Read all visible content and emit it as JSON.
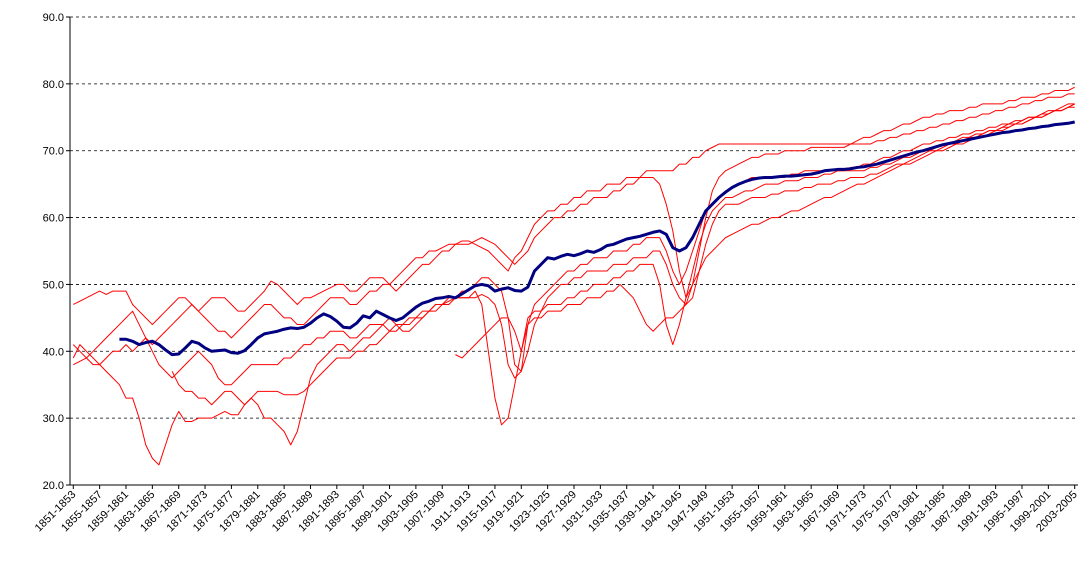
{
  "chart_data": {
    "type": "line",
    "categories": [
      "1851-1853",
      null,
      null,
      null,
      "1855-1857",
      null,
      null,
      null,
      "1859-1861",
      null,
      null,
      null,
      "1863-1865",
      null,
      null,
      null,
      "1867-1869",
      null,
      null,
      null,
      "1871-1873",
      null,
      null,
      null,
      "1875-1877",
      null,
      null,
      null,
      "1879-1881",
      null,
      null,
      null,
      "1883-1885",
      null,
      null,
      null,
      "1887-1889",
      null,
      null,
      null,
      "1891-1893",
      null,
      null,
      null,
      "1895-1897",
      null,
      null,
      null,
      "1899-1901",
      null,
      null,
      null,
      "1903-1905",
      null,
      null,
      null,
      "1907-1909",
      null,
      null,
      null,
      "1911-1913",
      null,
      null,
      null,
      "1915-1917",
      null,
      null,
      null,
      "1919-1921",
      null,
      null,
      null,
      "1923-1925",
      null,
      null,
      null,
      "1927-1929",
      null,
      null,
      null,
      "1931-1933",
      null,
      null,
      null,
      "1935-1937",
      null,
      null,
      null,
      "1939-1941",
      null,
      null,
      null,
      "1943-1945",
      null,
      null,
      null,
      "1947-1949",
      null,
      null,
      null,
      "1951-1953",
      null,
      null,
      null,
      "1955-1957",
      null,
      null,
      null,
      "1959-1961",
      null,
      null,
      null,
      "1963-1965",
      null,
      null,
      null,
      "1967-1969",
      null,
      null,
      null,
      "1971-1973",
      null,
      null,
      null,
      "1975-1977",
      null,
      null,
      null,
      "1979-1981",
      null,
      null,
      null,
      "1983-1985",
      null,
      null,
      null,
      "1987-1989",
      null,
      null,
      null,
      "1991-1993",
      null,
      null,
      null,
      "1995-1997",
      null,
      null,
      null,
      "1999-2001",
      null,
      null,
      null,
      "2003-2005"
    ],
    "series": [
      {
        "color": "#ff0000",
        "values": [
          47,
          47.5,
          48,
          48.5,
          49,
          48.5,
          49,
          49,
          49,
          47,
          46,
          45,
          44,
          45,
          46,
          47,
          48,
          48,
          47,
          46,
          47,
          48,
          48,
          48,
          47,
          46,
          46,
          47,
          48,
          49,
          50.5,
          50,
          49,
          48,
          47,
          48,
          48,
          48.5,
          49,
          49.5,
          50,
          50,
          49,
          49,
          50,
          51,
          51,
          51,
          50,
          51,
          52,
          53,
          54,
          54,
          55,
          55,
          55.5,
          56,
          56,
          56.5,
          56.5,
          56,
          55.5,
          55,
          54,
          53,
          52,
          54,
          55,
          57,
          59,
          60,
          61,
          61,
          62,
          62,
          63,
          63,
          64,
          64,
          64,
          65,
          65,
          65,
          66,
          66,
          66,
          67,
          67,
          67,
          67,
          67,
          68,
          68,
          69,
          69,
          70,
          70.5,
          71,
          71,
          71,
          71,
          71,
          71,
          71,
          71,
          71,
          71,
          71,
          71,
          71,
          71,
          71,
          71,
          71,
          71,
          71,
          71,
          71,
          71.5,
          72,
          72,
          72.5,
          73,
          73,
          73.5,
          74,
          74,
          74.5,
          75,
          75,
          75.5,
          75.5,
          76,
          76,
          76,
          76.5,
          76.5,
          77,
          77,
          77,
          77,
          77.5,
          77.5,
          78,
          78,
          78,
          78.5,
          78.5,
          79,
          79,
          79,
          79.5
        ]
      },
      {
        "color": "#ff0000",
        "values": [
          39,
          41,
          40,
          39,
          38,
          37,
          36,
          35,
          33,
          33,
          30,
          26,
          24,
          23,
          26,
          29,
          31,
          29.5,
          29.5,
          30,
          30,
          30,
          30.5,
          31,
          30.5,
          30.5,
          32,
          33,
          34,
          34,
          34,
          34,
          33.5,
          33.5,
          33.5,
          34,
          35,
          36,
          37,
          38,
          39,
          39,
          39,
          40,
          40,
          41,
          41,
          42,
          43,
          44,
          44,
          45,
          45,
          46,
          46,
          47,
          47,
          47.5,
          48,
          48,
          48,
          48,
          48.5,
          48,
          47,
          44,
          38,
          36,
          37,
          44,
          47,
          48,
          49,
          50,
          51,
          52,
          52,
          53,
          53,
          54,
          54,
          54,
          55,
          55,
          55,
          56,
          56,
          57,
          57,
          57,
          55,
          52,
          50,
          52,
          55,
          58,
          61,
          62,
          63,
          64,
          64.5,
          65,
          65.5,
          66,
          66,
          66,
          66,
          66,
          66,
          66.5,
          66.5,
          67,
          67,
          67,
          67,
          67,
          67,
          67,
          67.5,
          67.5,
          68,
          68,
          68.5,
          69,
          69,
          69.5,
          70,
          70,
          70.5,
          71,
          71,
          71.5,
          71.5,
          72,
          72,
          72.5,
          72.5,
          73,
          73,
          73.5,
          73.5,
          74,
          74,
          74.5,
          74.5,
          75,
          75,
          75.5,
          75.5,
          76,
          76,
          76.5,
          76.5
        ]
      },
      {
        "color": "#ff0000",
        "values": [
          41,
          40,
          39,
          38,
          38,
          39,
          40,
          40,
          41,
          40,
          41,
          42,
          40,
          38,
          37,
          36,
          37,
          38,
          39,
          40,
          39,
          38,
          36,
          35,
          35,
          36,
          37,
          38,
          38,
          38,
          38,
          38,
          39,
          39,
          40,
          41,
          41,
          42,
          42,
          43,
          43,
          43,
          42,
          42,
          43,
          44,
          44,
          44,
          43,
          43,
          44,
          44,
          45,
          45,
          46,
          46,
          47,
          47,
          48,
          48,
          48,
          49,
          47,
          40,
          33,
          29,
          30,
          35,
          40,
          45,
          46,
          46,
          47,
          47,
          47,
          48,
          48,
          49,
          49,
          50,
          50,
          50,
          51,
          51,
          52,
          52,
          53,
          53,
          53,
          50,
          44,
          41,
          44,
          48,
          52,
          56,
          59,
          61,
          62,
          63,
          63,
          63.5,
          64,
          64,
          64.5,
          65,
          65,
          65,
          65.5,
          65.5,
          65.5,
          66,
          66,
          66,
          66.5,
          66.5,
          67,
          67,
          67,
          67,
          67,
          67.5,
          67.5,
          68,
          68,
          68.5,
          69,
          69,
          69.5,
          70,
          70,
          70.5,
          71,
          71,
          71.5,
          72,
          72,
          72.5,
          72.5,
          73,
          73,
          73.5,
          73.5,
          74,
          74,
          74.5,
          75,
          75,
          75.5,
          76,
          76,
          76.5,
          77
        ]
      },
      {
        "color": "#ff0000",
        "values": [
          null,
          null,
          null,
          null,
          null,
          null,
          null,
          null,
          null,
          null,
          null,
          null,
          null,
          null,
          null,
          37,
          35,
          34,
          34,
          33,
          33,
          32,
          33,
          34,
          34,
          33,
          32,
          33,
          32,
          30,
          30,
          29,
          28,
          26,
          28,
          32,
          36,
          38,
          39,
          40,
          41,
          41,
          40,
          41,
          42,
          42,
          43,
          44,
          45,
          44,
          43,
          43,
          44,
          45,
          46,
          47,
          47,
          48,
          48,
          49,
          49,
          50,
          51,
          51,
          50,
          49,
          45,
          38,
          37,
          40,
          44,
          46,
          48,
          49,
          50,
          50,
          51,
          51,
          52,
          52,
          52,
          52,
          53,
          53,
          53,
          54,
          54,
          54,
          55,
          55,
          53,
          50,
          48,
          47,
          48,
          52,
          56,
          59,
          61,
          62,
          62,
          62,
          62.5,
          63,
          63,
          63,
          63.5,
          63.5,
          64,
          64,
          64,
          64.5,
          64.5,
          65,
          65,
          65,
          65.5,
          65.5,
          66,
          66,
          66,
          66.5,
          66.5,
          67,
          67.5,
          68,
          68,
          68.5,
          69,
          69.5,
          70,
          70,
          70.5,
          71,
          71,
          71.5,
          72,
          72,
          72.5,
          73,
          73,
          73.5,
          74,
          74,
          74.5,
          75,
          75,
          75.5,
          76,
          76,
          76.5,
          77,
          77
        ]
      },
      {
        "color": "#ff0000",
        "values": [
          38,
          38.5,
          39,
          40,
          41,
          42,
          43,
          44,
          45,
          46,
          44,
          42,
          41,
          42,
          43,
          44,
          45,
          46,
          47,
          46,
          45,
          44,
          43,
          43,
          42,
          43,
          44,
          45,
          46,
          47,
          47,
          46,
          45,
          45,
          44,
          44,
          45,
          46,
          47,
          48,
          48,
          48,
          47,
          47,
          48,
          49,
          49,
          50,
          50,
          49,
          50,
          51,
          52,
          53,
          53,
          54,
          55,
          55,
          56,
          56,
          56,
          56.5,
          57,
          56.5,
          56,
          55,
          54,
          53,
          54,
          55,
          57,
          58,
          59,
          60,
          60,
          61,
          61,
          62,
          62,
          63,
          63,
          63,
          64,
          64,
          65,
          65,
          66,
          66,
          66,
          65,
          62,
          58,
          52,
          48,
          50,
          55,
          60,
          64,
          66,
          67,
          67.5,
          68,
          68.5,
          69,
          69,
          69.5,
          69.5,
          69.5,
          70,
          70,
          70,
          70,
          70.5,
          70.5,
          70.5,
          70.5,
          70.5,
          70.5,
          71,
          71,
          71,
          71,
          71.5,
          71.5,
          72,
          72,
          72.5,
          72.5,
          73,
          73,
          73.5,
          73.5,
          74,
          74,
          74.5,
          74.5,
          75,
          75,
          75.5,
          75.5,
          76,
          76,
          76.5,
          76.5,
          77,
          77,
          77.5,
          77.5,
          78,
          78,
          78,
          78.5,
          78.5
        ]
      },
      {
        "color": "#ff0000",
        "values": [
          null,
          null,
          null,
          null,
          null,
          null,
          null,
          null,
          null,
          null,
          null,
          null,
          null,
          null,
          null,
          null,
          null,
          null,
          null,
          null,
          null,
          null,
          null,
          null,
          null,
          null,
          null,
          null,
          null,
          null,
          null,
          null,
          null,
          null,
          null,
          null,
          null,
          null,
          null,
          null,
          null,
          null,
          null,
          null,
          null,
          null,
          null,
          null,
          null,
          null,
          null,
          null,
          null,
          null,
          null,
          null,
          null,
          null,
          39.5,
          39,
          40,
          41,
          42,
          43,
          44,
          45,
          45,
          43,
          40,
          44,
          45,
          45,
          46,
          46,
          46,
          47,
          47,
          47,
          48,
          48,
          48,
          49,
          49,
          50,
          49,
          48,
          46,
          44,
          43,
          44,
          45,
          45,
          46,
          47,
          50,
          52,
          54,
          55,
          56,
          57,
          57.5,
          58,
          58.5,
          59,
          59,
          59.5,
          60,
          60,
          60.5,
          61,
          61,
          61.5,
          62,
          62.5,
          63,
          63,
          63.5,
          64,
          64.5,
          65,
          65,
          65.5,
          66,
          66.5,
          67,
          67.5,
          68,
          68,
          68.5,
          69,
          69.5,
          70,
          70,
          70.5,
          71,
          71,
          71.5,
          72,
          72,
          72.5,
          73,
          73,
          73.5,
          74,
          74,
          74.5,
          75,
          75,
          75.5,
          76,
          76,
          76.5,
          77
        ]
      },
      {
        "color": "#000080",
        "values": [
          null,
          null,
          null,
          null,
          null,
          null,
          null,
          41.8,
          41.8,
          41.5,
          41.0,
          41.3,
          41.5,
          41.0,
          40.2,
          39.5,
          39.6,
          40.5,
          41.5,
          41.2,
          40.5,
          40.0,
          40.1,
          40.2,
          39.8,
          39.7,
          40.1,
          41.0,
          42.0,
          42.6,
          42.8,
          43.0,
          43.3,
          43.5,
          43.4,
          43.6,
          44.2,
          45.0,
          45.6,
          45.2,
          44.5,
          43.6,
          43.5,
          44.2,
          45.3,
          45.0,
          46.0,
          45.5,
          45.0,
          44.6,
          45.0,
          45.8,
          46.6,
          47.2,
          47.5,
          47.9,
          48.0,
          48.2,
          48.0,
          48.6,
          49.2,
          49.8,
          50.0,
          49.8,
          49.0,
          49.3,
          49.5,
          49.1,
          49.0,
          49.6,
          52.0,
          53.0,
          54.0,
          53.8,
          54.2,
          54.5,
          54.3,
          54.6,
          55.0,
          54.8,
          55.2,
          55.8,
          56.0,
          56.4,
          56.8,
          57.0,
          57.2,
          57.5,
          57.8,
          58.0,
          57.5,
          55.5,
          55.0,
          55.5,
          57.0,
          59.0,
          61.0,
          62.0,
          63.0,
          63.8,
          64.5,
          65.0,
          65.4,
          65.7,
          65.9,
          66.0,
          66.0,
          66.1,
          66.2,
          66.2,
          66.3,
          66.4,
          66.5,
          66.7,
          67.0,
          67.1,
          67.2,
          67.2,
          67.3,
          67.5,
          67.6,
          67.8,
          68.0,
          68.3,
          68.6,
          68.9,
          69.2,
          69.5,
          69.8,
          70.0,
          70.3,
          70.6,
          70.9,
          71.1,
          71.3,
          71.5,
          71.7,
          71.9,
          72.1,
          72.3,
          72.5,
          72.7,
          72.8,
          73.0,
          73.1,
          73.3,
          73.4,
          73.6,
          73.7,
          73.9,
          74.0,
          74.1,
          74.3
        ],
        "width": 3
      }
    ],
    "ylim": [
      20,
      90
    ],
    "yticks": [
      {
        "value": 20,
        "label": "20.0"
      },
      {
        "value": 30,
        "label": "30.0"
      },
      {
        "value": 40,
        "label": "40.0"
      },
      {
        "value": 50,
        "label": "50.0"
      },
      {
        "value": 60,
        "label": "60.0"
      },
      {
        "value": 70,
        "label": "70.0"
      },
      {
        "value": 80,
        "label": "80.0"
      },
      {
        "value": 90,
        "label": "90.0"
      }
    ],
    "grid": true
  }
}
